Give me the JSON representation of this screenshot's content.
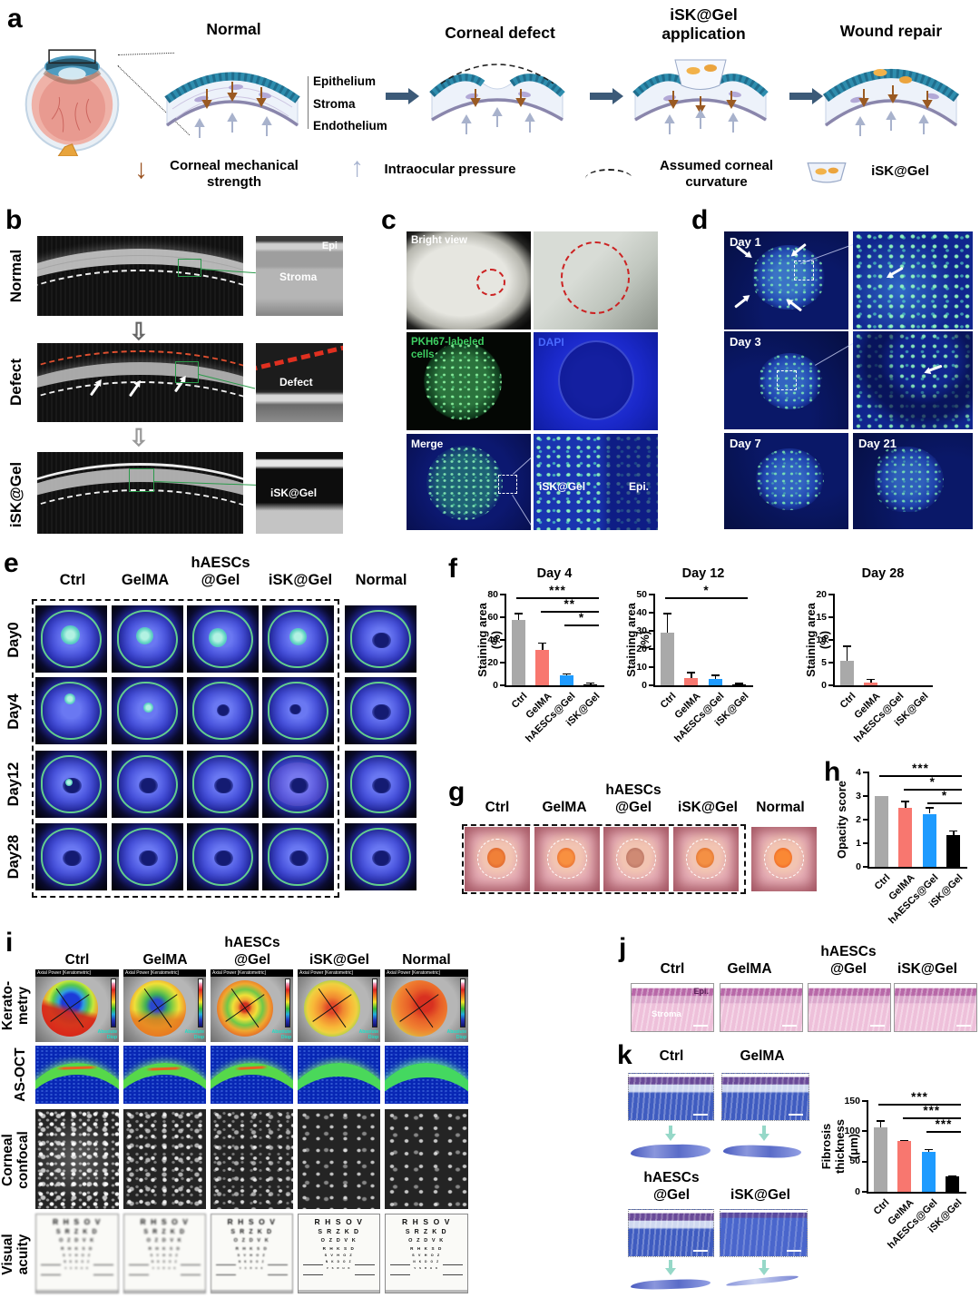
{
  "panel_a": {
    "label": "a",
    "stage_titles": [
      "Normal",
      "Corneal defect",
      "iSK@Gel\napplication",
      "Wound repair"
    ],
    "layer_labels": [
      "Epithelium",
      "Stroma",
      "Endothelium"
    ],
    "legend": [
      {
        "icon": "down-arrow",
        "label": "Corneal mechanical\nstrength"
      },
      {
        "icon": "up-arrow",
        "label": "Intraocular pressure"
      },
      {
        "icon": "dashed-arc",
        "label": "Assumed corneal\ncurvature"
      },
      {
        "icon": "gel",
        "label": "iSK@Gel"
      }
    ]
  },
  "panel_b": {
    "label": "b",
    "row_labels": [
      "Normal",
      "Defect",
      "iSK@Gel"
    ],
    "inset_labels": {
      "epi": "Epi",
      "stroma": "Stroma",
      "defect": "Defect",
      "gel": "iSK@Gel"
    }
  },
  "panel_c": {
    "label": "c",
    "bright": "Bright view",
    "pkh": "PKH67-labeled\ncells",
    "dapi": "DAPI",
    "merge": "Merge",
    "inset_gel": "iSK@Gel",
    "inset_epi": "Epi."
  },
  "panel_d": {
    "label": "d",
    "days": [
      "Day 1",
      "Day 3",
      "Day 7",
      "Day 21"
    ]
  },
  "panel_e": {
    "label": "e",
    "col_headers": [
      "Ctrl",
      "GelMA",
      "hAESCs\n@Gel",
      "iSK@Gel",
      "Normal"
    ],
    "row_labels": [
      "Day0",
      "Day4",
      "Day12",
      "Day28"
    ]
  },
  "panel_f": {
    "label": "f"
  },
  "panel_g": {
    "label": "g",
    "col_headers": [
      "Ctrl",
      "GelMA",
      "hAESCs\n@Gel",
      "iSK@Gel",
      "Normal"
    ]
  },
  "panel_h": {
    "label": "h"
  },
  "panel_i": {
    "label": "i",
    "col_headers": [
      "Ctrl",
      "GelMA",
      "hAESCs\n@Gel",
      "iSK@Gel",
      "Normal"
    ],
    "row_labels": [
      "Kerato-\nmetry",
      "AS-OCT",
      "Corneal\nconfocal",
      "Visual\nacuity"
    ],
    "kerato_header": "Axial Power [Keratometric]",
    "kerato_scale_label": "Absolute\nDiop",
    "acuity_rows": [
      "R H S O V",
      "S R Z K D",
      "O Z D V K",
      "R H K S D",
      "S V H O Z",
      "N K D O Z",
      "V S R H K"
    ]
  },
  "panel_j": {
    "label": "j",
    "col_headers": [
      "Ctrl",
      "GelMA",
      "hAESCs\n@Gel",
      "iSK@Gel"
    ],
    "epi_label": "Epi.",
    "stroma_label": "Stroma"
  },
  "panel_k": {
    "label": "k",
    "col_headers": [
      "Ctrl",
      "GelMA",
      "hAESCs\n@Gel",
      "iSK@Gel"
    ]
  },
  "colors": {
    "bar_gray": "#a9a9a9",
    "bar_salmon": "#f8776f",
    "bar_blue": "#1e9bff",
    "bar_black": "#000000"
  },
  "chart_data": [
    {
      "id": "f_day4",
      "type": "bar",
      "title": "Day 4",
      "ylabel": "Staining area (%)",
      "categories": [
        "Ctrl",
        "GelMA",
        "hAESCs@Gel",
        "iSK@Gel"
      ],
      "values": [
        58,
        31,
        9,
        1
      ],
      "errors": [
        6,
        7,
        1.5,
        1.5
      ],
      "bar_colors": [
        "#a9a9a9",
        "#f8776f",
        "#1e9bff",
        "#000000"
      ],
      "ylim": [
        0,
        80
      ],
      "yticks": [
        0,
        20,
        40,
        60,
        80
      ],
      "significance": [
        {
          "from": 0,
          "to": 3,
          "label": "***"
        },
        {
          "from": 1,
          "to": 3,
          "label": "**"
        },
        {
          "from": 2,
          "to": 3,
          "label": "*"
        }
      ]
    },
    {
      "id": "f_day12",
      "type": "bar",
      "title": "Day 12",
      "ylabel": "Staining area (%)",
      "categories": [
        "Ctrl",
        "GelMA",
        "hAESCs@Gel",
        "iSK@Gel"
      ],
      "values": [
        29,
        4,
        3.5,
        0.5
      ],
      "errors": [
        11,
        3.5,
        2.5,
        1
      ],
      "bar_colors": [
        "#a9a9a9",
        "#f8776f",
        "#1e9bff",
        "#000000"
      ],
      "ylim": [
        0,
        50
      ],
      "yticks": [
        0,
        10,
        20,
        30,
        40,
        50
      ],
      "significance": [
        {
          "from": 0,
          "to": 3,
          "label": "*"
        }
      ]
    },
    {
      "id": "f_day28",
      "type": "bar",
      "title": "Day 28",
      "ylabel": "Staining area (%)",
      "categories": [
        "Ctrl",
        "GelMA",
        "hAESCs@Gel",
        "iSK@Gel"
      ],
      "values": [
        5.5,
        0.7,
        0,
        0
      ],
      "errors": [
        3.3,
        0.8,
        0,
        0
      ],
      "bar_colors": [
        "#a9a9a9",
        "#f8776f",
        "#1e9bff",
        "#000000"
      ],
      "ylim": [
        0,
        20
      ],
      "yticks": [
        0,
        5,
        10,
        15,
        20
      ],
      "significance": []
    },
    {
      "id": "h_opacity",
      "type": "bar",
      "title": "",
      "ylabel": "Opacity score",
      "categories": [
        "Ctrl",
        "GelMA",
        "hAESCs@Gel",
        "iSK@Gel"
      ],
      "values": [
        3,
        2.5,
        2.25,
        1.33
      ],
      "errors": [
        0,
        0.3,
        0.27,
        0.22
      ],
      "bar_colors": [
        "#a9a9a9",
        "#f8776f",
        "#1e9bff",
        "#000000"
      ],
      "ylim": [
        0,
        4
      ],
      "yticks": [
        0,
        1,
        2,
        3,
        4
      ],
      "significance": [
        {
          "from": 0,
          "to": 3,
          "label": "***"
        },
        {
          "from": 1,
          "to": 3,
          "label": "*"
        },
        {
          "from": 2,
          "to": 3,
          "label": "*"
        }
      ]
    },
    {
      "id": "k_fibrosis",
      "type": "bar",
      "title": "",
      "ylabel": "Fibrosis thickness\n(μm)",
      "categories": [
        "Ctrl",
        "GelMA",
        "hAESCs@Gel",
        "iSK@Gel"
      ],
      "values": [
        106,
        84,
        66,
        25
      ],
      "errors": [
        12,
        2,
        5,
        2
      ],
      "bar_colors": [
        "#a9a9a9",
        "#f8776f",
        "#1e9bff",
        "#000000"
      ],
      "ylim": [
        0,
        150
      ],
      "yticks": [
        0,
        50,
        100,
        150
      ],
      "significance": [
        {
          "from": 0,
          "to": 3,
          "label": "***"
        },
        {
          "from": 1,
          "to": 3,
          "label": "***"
        },
        {
          "from": 2,
          "to": 3,
          "label": "***"
        }
      ]
    }
  ]
}
